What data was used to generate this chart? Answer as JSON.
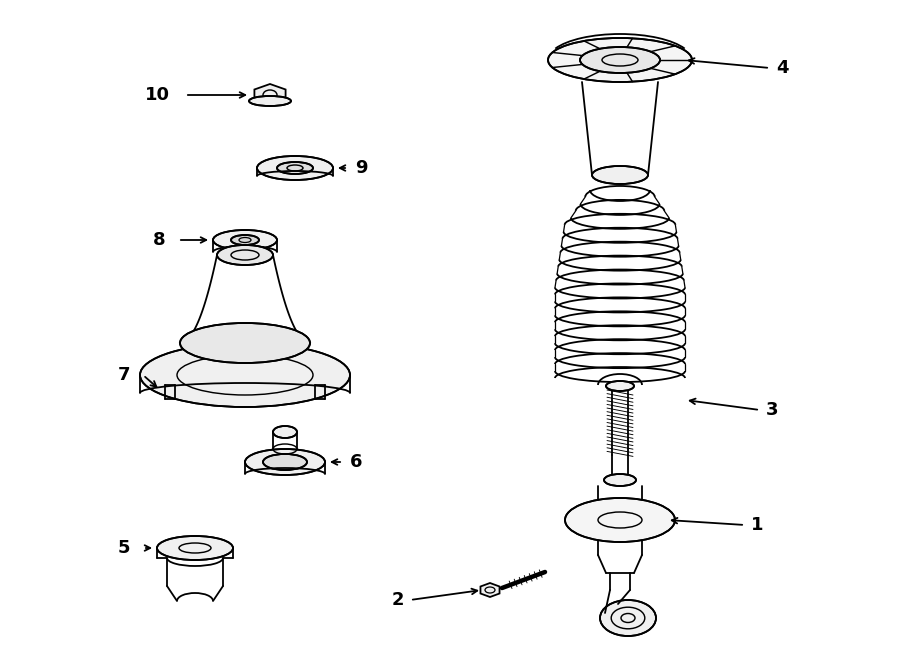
{
  "bg_color": "#ffffff",
  "lc": "#000000",
  "lw": 1.3,
  "fig_w": 9.0,
  "fig_h": 6.61,
  "dpi": 100
}
